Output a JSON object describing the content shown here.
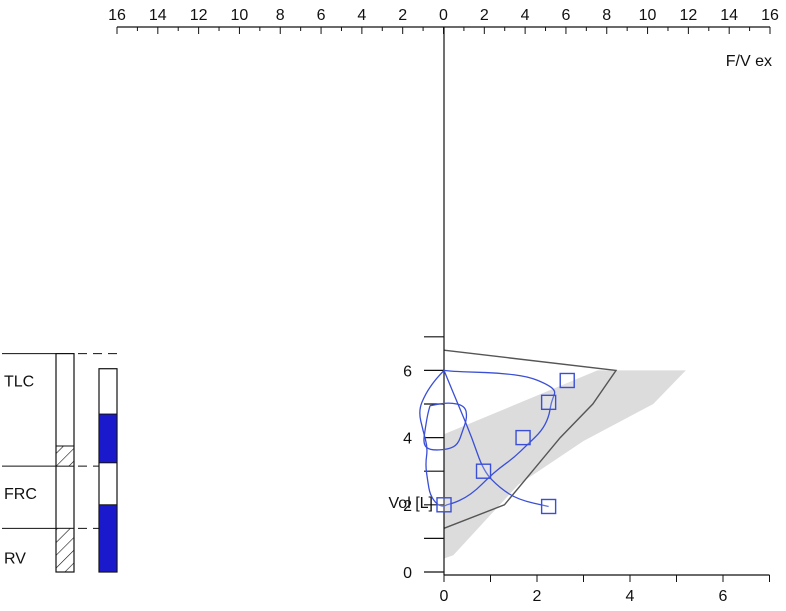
{
  "chart_data": {
    "type": "line",
    "title": "",
    "top_axis": {
      "label": "F/V ex",
      "ticks": [
        "16",
        "14",
        "12",
        "10",
        "8",
        "6",
        "4",
        "2",
        "0",
        "2",
        "4",
        "6",
        "8",
        "10",
        "12",
        "14",
        "16"
      ]
    },
    "left_axis": {
      "label": "Vol [L]",
      "ticks": [
        "0",
        "2",
        "4",
        "6"
      ],
      "ylim": [
        0,
        8
      ]
    },
    "bottom_axis": {
      "ticks": [
        "0",
        "2",
        "4",
        "6"
      ],
      "xlim": [
        0,
        7
      ]
    },
    "level_labels": {
      "tlc": "TLC",
      "frc": "FRC",
      "rv": "RV"
    },
    "colors": {
      "curve": "#3a4fd6",
      "predicted_band": "#dcdcdc",
      "predicted_line": "#555555",
      "bar_fill": "#1a1acc",
      "axis": "#111111"
    },
    "series": [
      {
        "role": "measured-loop",
        "points": [
          [
            0,
            6
          ],
          [
            0.2,
            5.97
          ],
          [
            0.6,
            5.95
          ],
          [
            1.2,
            5.92
          ],
          [
            1.8,
            5.82
          ],
          [
            2.2,
            5.6
          ],
          [
            2.4,
            5.4
          ],
          [
            2.35,
            5.2
          ],
          [
            2.3,
            5.0
          ],
          [
            2.25,
            4.6
          ],
          [
            2.1,
            4.2
          ],
          [
            1.8,
            3.8
          ],
          [
            1.5,
            3.4
          ],
          [
            1.2,
            3.1
          ],
          [
            0.95,
            2.8
          ],
          [
            0.7,
            2.45
          ],
          [
            0.45,
            2.2
          ],
          [
            0.2,
            2.05
          ],
          [
            0.05,
            2.0
          ],
          [
            0,
            1.95
          ],
          [
            -0.15,
            2.0
          ],
          [
            -0.3,
            2.3
          ],
          [
            -0.35,
            2.7
          ],
          [
            -0.4,
            3.2
          ],
          [
            -0.35,
            3.7
          ],
          [
            -0.45,
            4.2
          ],
          [
            -0.55,
            4.8
          ],
          [
            -0.4,
            5.3
          ],
          [
            -0.2,
            5.7
          ],
          [
            0,
            6
          ]
        ]
      },
      {
        "role": "inner-loop",
        "points": [
          [
            -0.3,
            4.95
          ],
          [
            0.1,
            5.05
          ],
          [
            0.45,
            4.95
          ],
          [
            0.5,
            4.6
          ],
          [
            0.4,
            4.2
          ],
          [
            0.3,
            3.8
          ],
          [
            0.1,
            3.65
          ],
          [
            -0.3,
            3.62
          ],
          [
            -0.45,
            3.8
          ],
          [
            -0.4,
            4.3
          ],
          [
            -0.35,
            4.7
          ],
          [
            -0.3,
            4.95
          ]
        ]
      },
      {
        "role": "straight-stroke",
        "points": [
          [
            0,
            6
          ],
          [
            0.3,
            5.0
          ],
          [
            0.6,
            4.0
          ],
          [
            0.85,
            3.0
          ],
          [
            1.2,
            2.5
          ],
          [
            1.6,
            2.15
          ],
          [
            2.25,
            1.95
          ]
        ]
      },
      {
        "role": "predicted",
        "points": [
          [
            0,
            6.6
          ],
          [
            3.7,
            6.0
          ],
          [
            3.2,
            5.0
          ],
          [
            2.5,
            4.0
          ],
          [
            1.9,
            3.0
          ],
          [
            1.3,
            2.0
          ],
          [
            0,
            1.3
          ]
        ]
      }
    ],
    "predicted_band_polygon": [
      [
        0,
        4.1
      ],
      [
        3.3,
        6.0
      ],
      [
        5.2,
        6.0
      ],
      [
        4.5,
        5.0
      ],
      [
        3.0,
        3.9
      ],
      [
        1.6,
        2.6
      ],
      [
        0.2,
        0.5
      ],
      [
        0,
        0.4
      ]
    ],
    "markers": [
      [
        2.65,
        5.7
      ],
      [
        2.25,
        5.05
      ],
      [
        1.7,
        4.0
      ],
      [
        0.85,
        3.0
      ],
      [
        0,
        2.0
      ],
      [
        2.25,
        1.95
      ]
    ],
    "level_bars": {
      "reference": {
        "tlc": 6.5,
        "frc": 3.15,
        "rv": 1.3,
        "hatch_low": [
          0,
          1.3
        ],
        "hatch_high": [
          3.15,
          3.75
        ]
      },
      "measured": {
        "top": 6.05,
        "filled_segments": [
          [
            3.25,
            4.7
          ],
          [
            0,
            2.0
          ]
        ]
      }
    }
  }
}
